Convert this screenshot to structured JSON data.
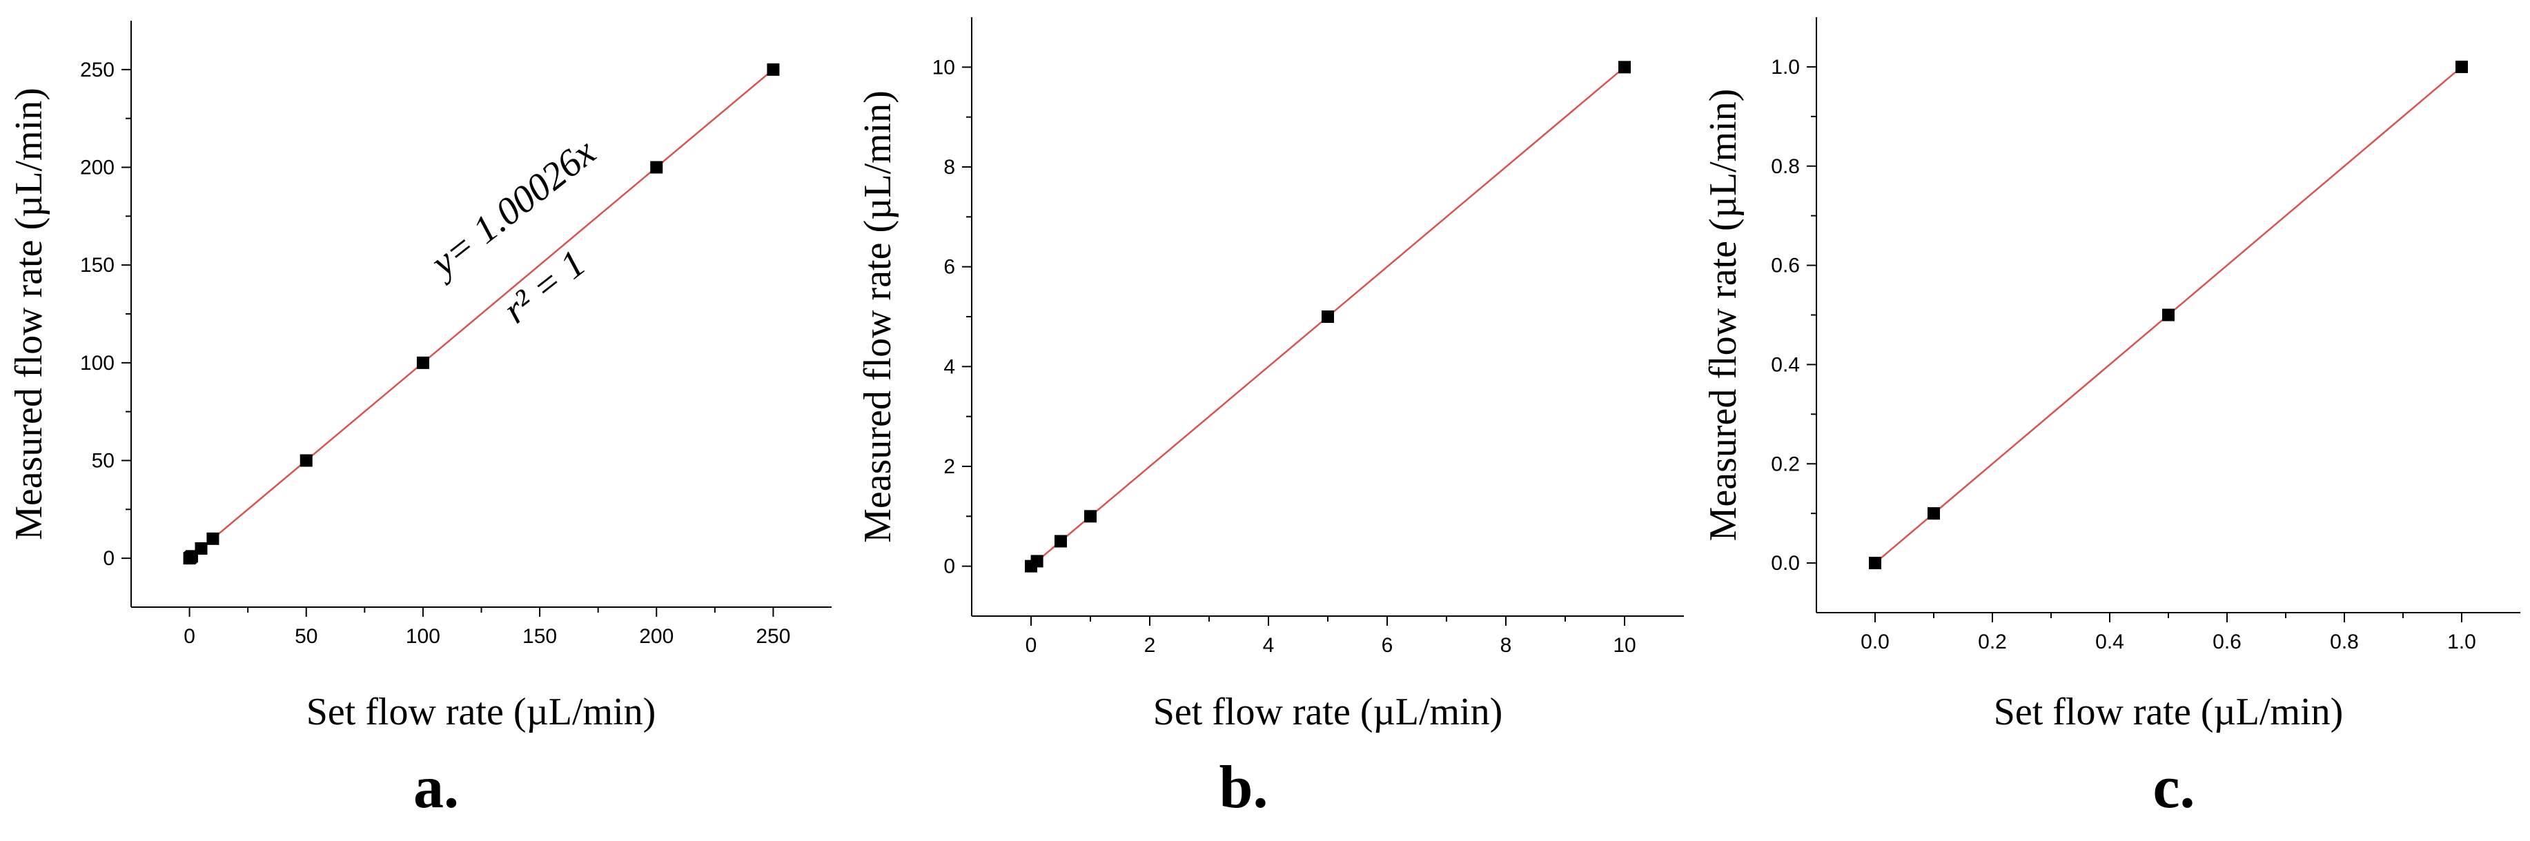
{
  "chart_data": [
    {
      "type": "scatter",
      "panel_label": "a.",
      "xlabel": "Set flow rate (µL/min)",
      "ylabel": "Measured flow rate (µL/min)",
      "xlim": [
        -25,
        275
      ],
      "ylim": [
        -25,
        275
      ],
      "xticks": [
        0,
        50,
        100,
        150,
        200,
        250
      ],
      "yticks": [
        0,
        50,
        100,
        150,
        200,
        250
      ],
      "series": [
        {
          "x": [
            0,
            0.5,
            1,
            5,
            10,
            50,
            100,
            200,
            250
          ],
          "y": [
            0,
            0.5,
            1,
            5,
            10,
            50,
            100,
            200,
            250
          ],
          "marker": "square",
          "color": "#000000"
        }
      ],
      "fit_line": {
        "slope": 1.00026,
        "x_range": [
          0,
          250
        ],
        "color": "#d9534f"
      },
      "annotations": [
        "y= 1.00026x",
        "r² = 1"
      ],
      "grid": false
    },
    {
      "type": "scatter",
      "panel_label": "b.",
      "xlabel": "Set flow rate (µL/min)",
      "ylabel": "Measured flow rate (µL/min)",
      "xlim": [
        -1,
        11
      ],
      "ylim": [
        -1,
        11
      ],
      "xticks": [
        0,
        2,
        4,
        6,
        8,
        10
      ],
      "yticks": [
        0,
        2,
        4,
        6,
        8,
        10
      ],
      "series": [
        {
          "x": [
            0,
            0.1,
            0.5,
            1,
            5,
            10
          ],
          "y": [
            0,
            0.1,
            0.5,
            1,
            5,
            10
          ],
          "marker": "square",
          "color": "#000000"
        }
      ],
      "fit_line": {
        "slope": 1,
        "x_range": [
          0,
          10
        ],
        "color": "#d9534f"
      },
      "grid": false
    },
    {
      "type": "scatter",
      "panel_label": "c.",
      "xlabel": "Set flow rate (µL/min)",
      "ylabel": "Measured flow rate (µL/min)",
      "xlim": [
        -0.1,
        1.1
      ],
      "ylim": [
        -0.1,
        1.1
      ],
      "xticks": [
        "0.0",
        "0.2",
        "0.4",
        "0.6",
        "0.8",
        "1.0"
      ],
      "yticks": [
        "0.0",
        "0.2",
        "0.4",
        "0.6",
        "0.8",
        "1.0"
      ],
      "series": [
        {
          "x": [
            0,
            0.1,
            0.5,
            1
          ],
          "y": [
            0,
            0.1,
            0.5,
            1
          ],
          "marker": "square",
          "color": "#000000"
        }
      ],
      "fit_line": {
        "slope": 1,
        "x_range": [
          0,
          1
        ],
        "color": "#d9534f"
      },
      "grid": false
    }
  ]
}
